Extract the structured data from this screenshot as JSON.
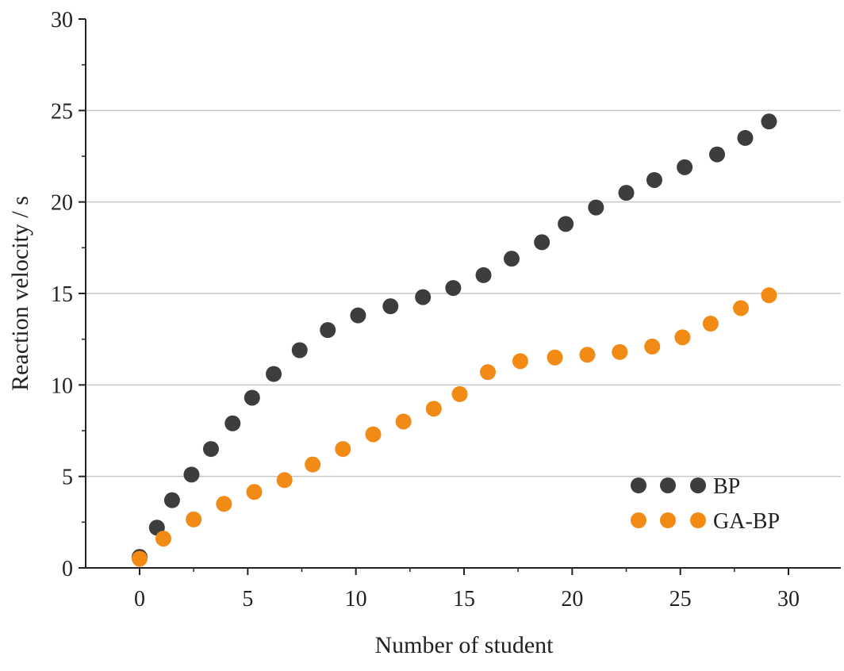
{
  "chart_data": {
    "type": "scatter",
    "title": "",
    "xlabel": "Number of student",
    "ylabel": "Reaction velocity / s",
    "xlim": [
      -2.5,
      32.5
    ],
    "ylim": [
      0,
      30
    ],
    "xticks": [
      0,
      5,
      10,
      15,
      20,
      25,
      30
    ],
    "yticks": [
      0,
      5,
      10,
      15,
      20,
      25,
      30
    ],
    "grid": "horizontal",
    "legend_position": "bottom-right",
    "series": [
      {
        "name": "BP",
        "color": "#3d3d3d",
        "x": [
          0,
          0.8,
          1.5,
          2.4,
          3.3,
          4.3,
          5.2,
          6.2,
          7.4,
          8.7,
          10.1,
          11.6,
          13.1,
          14.5,
          15.9,
          17.2,
          18.6,
          19.7,
          21.1,
          22.5,
          23.8,
          25.2,
          26.7,
          28.0,
          29.1
        ],
        "y": [
          0.6,
          2.2,
          3.7,
          5.1,
          6.5,
          7.9,
          9.3,
          10.6,
          11.9,
          13.0,
          13.8,
          14.3,
          14.8,
          15.3,
          16.0,
          16.9,
          17.8,
          18.8,
          19.7,
          20.5,
          21.2,
          21.9,
          22.6,
          23.5,
          24.4
        ]
      },
      {
        "name": "GA-BP",
        "color": "#f28a16",
        "x": [
          0,
          1.1,
          2.5,
          3.9,
          5.3,
          6.7,
          8.0,
          9.4,
          10.8,
          12.2,
          13.6,
          14.8,
          16.1,
          17.6,
          19.2,
          20.7,
          22.2,
          23.7,
          25.1,
          26.4,
          27.8,
          29.1
        ],
        "y": [
          0.5,
          1.6,
          2.65,
          3.5,
          4.15,
          4.8,
          5.65,
          6.5,
          7.3,
          8.0,
          8.7,
          9.5,
          10.7,
          11.3,
          11.5,
          11.65,
          11.8,
          12.1,
          12.6,
          13.35,
          14.2,
          14.9
        ]
      }
    ]
  }
}
